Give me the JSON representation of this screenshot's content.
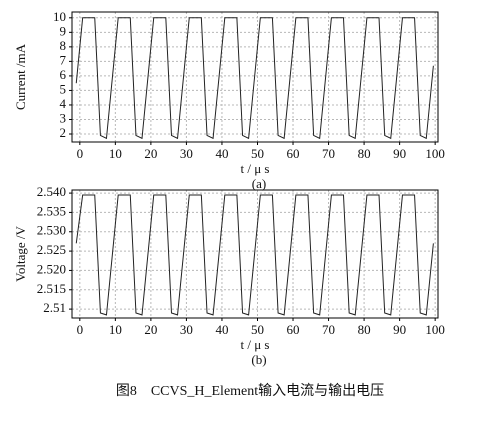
{
  "chart_data": [
    {
      "type": "line",
      "y_label": "Current /mA",
      "x_label": "t / μ s",
      "panel_label": "(a)",
      "xlim": [
        -2.2,
        100.8
      ],
      "xticks": [
        0,
        10,
        20,
        30,
        40,
        50,
        60,
        70,
        80,
        90,
        100
      ],
      "ylim": [
        1.45,
        10.4
      ],
      "yticks": [
        2,
        3,
        4,
        5,
        6,
        7,
        8,
        9,
        10
      ],
      "grid": true,
      "x": [
        -1,
        0.8,
        4.2,
        5.8,
        7.5,
        10.8,
        14.2,
        15.8,
        17.5,
        20.8,
        24.2,
        25.8,
        27.5,
        30.8,
        34.2,
        35.8,
        37.5,
        40.8,
        44.2,
        45.8,
        47.5,
        50.8,
        54.2,
        55.8,
        57.5,
        60.8,
        64.2,
        65.8,
        67.5,
        70.8,
        74.2,
        75.8,
        77.5,
        80.8,
        84.2,
        85.8,
        87.5,
        90.8,
        94.2,
        95.8,
        97.5,
        99.5
      ],
      "series": [
        {
          "color": "#222222",
          "values": [
            5.5,
            10,
            10,
            1.9,
            1.7,
            10,
            10,
            1.9,
            1.7,
            10,
            10,
            1.9,
            1.7,
            10,
            10,
            1.9,
            1.7,
            10,
            10,
            1.9,
            1.7,
            10,
            10,
            1.9,
            1.7,
            10,
            10,
            1.9,
            1.7,
            10,
            10,
            1.9,
            1.7,
            10,
            10,
            1.9,
            1.7,
            10,
            10,
            1.9,
            1.7,
            6.7
          ]
        }
      ]
    },
    {
      "type": "line",
      "y_label": "Voltage /V",
      "x_label": "t / μ s",
      "panel_label": "(b)",
      "xlim": [
        -2.2,
        100.8
      ],
      "xticks": [
        0,
        10,
        20,
        30,
        40,
        50,
        60,
        70,
        80,
        90,
        100
      ],
      "ylim": [
        2.5077,
        2.5408
      ],
      "yticks": [
        2.51,
        2.515,
        {
          "value": 2.52,
          "label": "2.520"
        },
        2.525,
        {
          "value": 2.53,
          "label": "2.530"
        },
        2.535,
        {
          "value": 2.54,
          "label": "2.540"
        }
      ],
      "grid": true,
      "x": [
        -1,
        0.8,
        4.2,
        5.8,
        7.5,
        10.8,
        14.2,
        15.8,
        17.5,
        20.8,
        24.2,
        25.8,
        27.5,
        30.8,
        34.2,
        35.8,
        37.5,
        40.8,
        44.2,
        45.8,
        47.5,
        50.8,
        54.2,
        55.8,
        57.5,
        60.8,
        64.2,
        65.8,
        67.5,
        70.8,
        74.2,
        75.8,
        77.5,
        80.8,
        84.2,
        85.8,
        87.5,
        90.8,
        94.2,
        95.8,
        97.5,
        99.5
      ],
      "series": [
        {
          "color": "#222222",
          "values": [
            2.527,
            2.5395,
            2.5395,
            2.509,
            2.5085,
            2.5395,
            2.5395,
            2.509,
            2.5085,
            2.5395,
            2.5395,
            2.509,
            2.5085,
            2.5395,
            2.5395,
            2.509,
            2.5085,
            2.5395,
            2.5395,
            2.509,
            2.5085,
            2.5395,
            2.5395,
            2.509,
            2.5085,
            2.5395,
            2.5395,
            2.509,
            2.5085,
            2.5395,
            2.5395,
            2.509,
            2.5085,
            2.5395,
            2.5395,
            2.509,
            2.5085,
            2.5395,
            2.5395,
            2.509,
            2.5085,
            2.527
          ]
        }
      ]
    }
  ],
  "caption": "图8　CCVS_H_Element输入电流与输出电压"
}
